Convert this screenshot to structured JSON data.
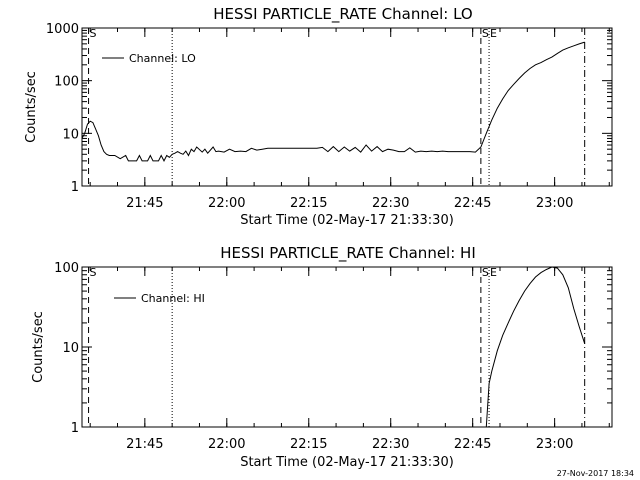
{
  "footer": {
    "timestamp": "27-Nov-2017 18:34"
  },
  "chart_data": [
    {
      "type": "line",
      "title": "HESSI PARTICLE_RATE Channel: LO",
      "xlabel": "Start Time (02-May-17 21:33:30)",
      "ylabel": "Counts/sec",
      "yscale": "log",
      "ylim": [
        1,
        1000
      ],
      "xlim_minutes": [
        0,
        97
      ],
      "x_ticks": [
        {
          "t": 11.5,
          "label": "21:45"
        },
        {
          "t": 26.5,
          "label": "22:00"
        },
        {
          "t": 41.5,
          "label": "22:15"
        },
        {
          "t": 56.5,
          "label": "22:30"
        },
        {
          "t": 71.5,
          "label": "22:45"
        },
        {
          "t": 86.5,
          "label": "23:00"
        }
      ],
      "y_ticks": [
        {
          "v": 1,
          "label": "1"
        },
        {
          "v": 10,
          "label": "10"
        },
        {
          "v": 100,
          "label": "100"
        },
        {
          "v": 1000,
          "label": "1000"
        }
      ],
      "legend": {
        "position": "top-left",
        "entries": [
          "Channel: LO"
        ]
      },
      "grid": false,
      "markers": [
        {
          "t": 1.2,
          "style": "dashed",
          "label": "S"
        },
        {
          "t": 16.5,
          "style": "dotted",
          "label": ""
        },
        {
          "t": 73.0,
          "style": "dashed",
          "label": "S"
        },
        {
          "t": 74.5,
          "style": "dotted",
          "label": "E"
        },
        {
          "t": 92.0,
          "style": "dashdot",
          "label": ""
        }
      ],
      "series": [
        {
          "name": "Channel: LO",
          "x": [
            0.0,
            0.5,
            1.0,
            1.5,
            2.0,
            2.5,
            3.0,
            3.5,
            4.0,
            4.5,
            5.0,
            5.5,
            6.0,
            7.0,
            8.0,
            8.5,
            9.0,
            10.0,
            10.5,
            11.0,
            12.0,
            12.5,
            13.0,
            14.0,
            14.5,
            15.0,
            15.5,
            16.0,
            16.5,
            17.0,
            17.5,
            18.0,
            18.5,
            19.0,
            19.5,
            20.0,
            20.5,
            21.0,
            22.0,
            22.5,
            23.0,
            24.0,
            24.5,
            25.0,
            26.0,
            27.0,
            28.0,
            29.0,
            30.0,
            31.0,
            32.0,
            33.0,
            34.0,
            35.0,
            36.0,
            37.0,
            38.0,
            39.0,
            40.0,
            41.0,
            42.0,
            43.0,
            44.0,
            45.0,
            46.0,
            47.0,
            48.0,
            49.0,
            50.0,
            51.0,
            52.0,
            53.0,
            54.0,
            55.0,
            56.0,
            57.0,
            58.0,
            59.0,
            60.0,
            61.0,
            62.0,
            63.0,
            64.0,
            65.0,
            66.0,
            67.0,
            68.0,
            69.0,
            70.0,
            71.0,
            72.0,
            73.0,
            74.0,
            75.0,
            76.0,
            77.0,
            78.0,
            79.0,
            80.0,
            81.0,
            82.0,
            83.0,
            84.0,
            85.0,
            86.0,
            87.0,
            88.0,
            89.0,
            90.0,
            91.0,
            92.0
          ],
          "y": [
            8,
            10,
            15,
            17,
            16,
            12,
            9,
            6,
            4.5,
            4,
            3.8,
            3.8,
            3.8,
            3.3,
            3.8,
            3,
            3,
            3,
            3.8,
            3,
            3,
            3.8,
            3,
            3,
            3.8,
            3,
            3.8,
            3.5,
            4,
            4.2,
            4.5,
            4.2,
            4,
            4.6,
            3.8,
            5,
            4.5,
            5.5,
            4.4,
            5,
            4.2,
            5.5,
            4.5,
            4.6,
            4.4,
            5,
            4.5,
            4.6,
            4.5,
            5.2,
            4.8,
            5,
            5.2,
            5.2,
            5.2,
            5.2,
            5.2,
            5.2,
            5.2,
            5.2,
            5.2,
            5.2,
            5.4,
            4.5,
            5.6,
            4.5,
            5.5,
            4.6,
            5.4,
            4.4,
            6,
            4.6,
            5.6,
            4.5,
            5,
            4.8,
            4.5,
            4.5,
            5.3,
            4.4,
            4.6,
            4.5,
            4.6,
            4.5,
            4.6,
            4.5,
            4.5,
            4.5,
            4.5,
            4.5,
            4.4,
            5.5,
            10,
            18,
            30,
            45,
            65,
            85,
            110,
            140,
            170,
            200,
            220,
            250,
            280,
            330,
            380,
            420,
            460,
            500,
            540
          ]
        }
      ]
    },
    {
      "type": "line",
      "title": "HESSI PARTICLE_RATE Channel: HI",
      "xlabel": "Start Time (02-May-17 21:33:30)",
      "ylabel": "Counts/sec",
      "yscale": "log",
      "ylim": [
        1,
        100
      ],
      "xlim_minutes": [
        0,
        97
      ],
      "x_ticks": [
        {
          "t": 11.5,
          "label": "21:45"
        },
        {
          "t": 26.5,
          "label": "22:00"
        },
        {
          "t": 41.5,
          "label": "22:15"
        },
        {
          "t": 56.5,
          "label": "22:30"
        },
        {
          "t": 71.5,
          "label": "22:45"
        },
        {
          "t": 86.5,
          "label": "23:00"
        }
      ],
      "y_ticks": [
        {
          "v": 1,
          "label": "1"
        },
        {
          "v": 10,
          "label": "10"
        },
        {
          "v": 100,
          "label": "100"
        }
      ],
      "legend": {
        "position": "top-left",
        "entries": [
          "Channel: HI"
        ]
      },
      "grid": false,
      "markers": [
        {
          "t": 1.2,
          "style": "dashed",
          "label": "S"
        },
        {
          "t": 16.5,
          "style": "dotted",
          "label": ""
        },
        {
          "t": 73.0,
          "style": "dashed",
          "label": "S"
        },
        {
          "t": 74.5,
          "style": "dotted",
          "label": "E"
        },
        {
          "t": 92.0,
          "style": "dashdot",
          "label": ""
        }
      ],
      "series": [
        {
          "name": "Channel: HI",
          "x": [
            74.0,
            74.5,
            75.0,
            76.0,
            77.0,
            78.0,
            79.0,
            80.0,
            81.0,
            82.0,
            83.0,
            84.0,
            85.0,
            86.0,
            87.0,
            88.0,
            89.0,
            90.0,
            91.0,
            92.0
          ],
          "y": [
            1.0,
            3.5,
            5,
            9,
            14,
            20,
            28,
            38,
            50,
            62,
            75,
            85,
            93,
            100,
            97,
            80,
            55,
            30,
            18,
            11
          ]
        }
      ]
    }
  ]
}
